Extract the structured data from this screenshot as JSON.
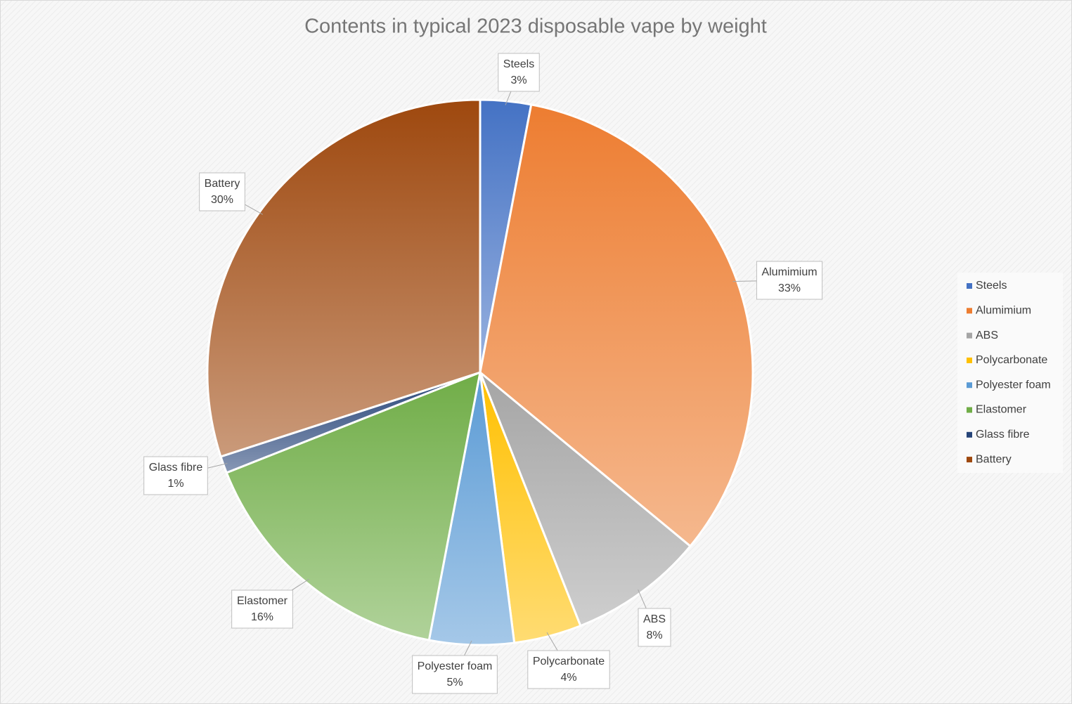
{
  "chart_data": {
    "type": "pie",
    "title": "Contents in typical 2023 disposable vape by weight",
    "categories": [
      "Steels",
      "Alumimium",
      "ABS",
      "Polycarbonate",
      "Polyester foam",
      "Elastomer",
      "Glass fibre",
      "Battery"
    ],
    "values": [
      3,
      33,
      8,
      4,
      5,
      16,
      1,
      30
    ],
    "value_labels": [
      "3%",
      "33%",
      "8%",
      "4%",
      "5%",
      "16%",
      "1%",
      "30%"
    ],
    "colors": [
      "#4472c4",
      "#ed7d31",
      "#a5a5a5",
      "#ffc000",
      "#5b9bd5",
      "#70ad47",
      "#264478",
      "#9e480e"
    ],
    "legend": "right"
  }
}
